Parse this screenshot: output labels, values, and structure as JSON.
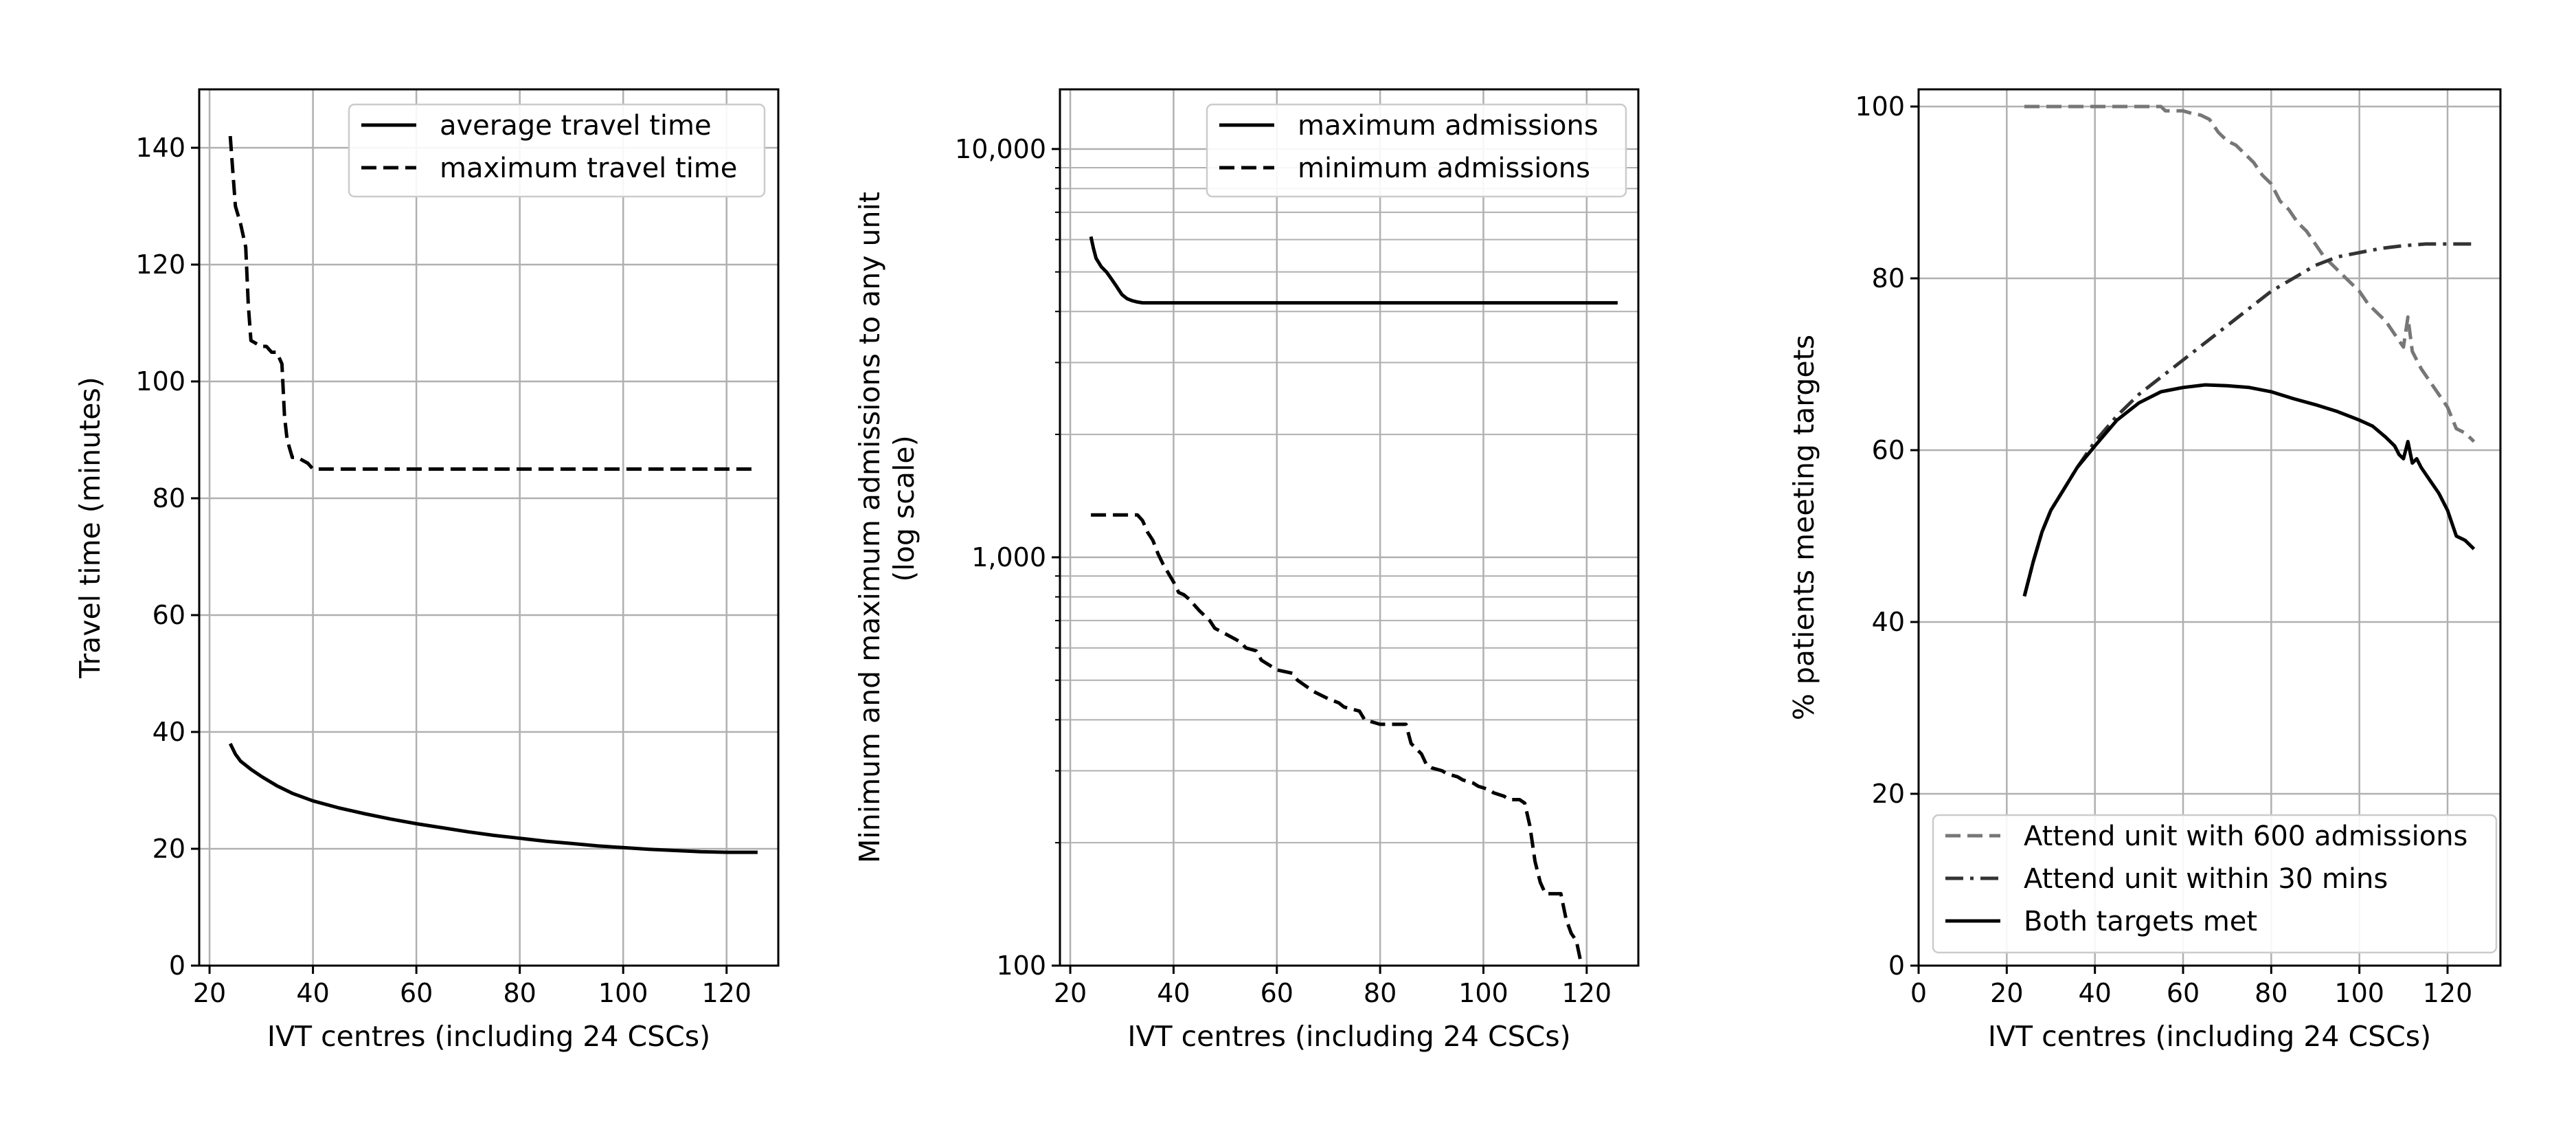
{
  "chart_data": [
    {
      "type": "line",
      "xlabel": "IVT centres (including 24 CSCs)",
      "ylabel": "Travel time (minutes)",
      "xlim": [
        18,
        130
      ],
      "ylim": [
        0,
        150
      ],
      "xticks": [
        20,
        40,
        60,
        80,
        100,
        120
      ],
      "yticks": [
        0,
        20,
        40,
        60,
        80,
        100,
        120,
        140
      ],
      "xtick_labels": [
        "20",
        "40",
        "60",
        "80",
        "100",
        "120"
      ],
      "ytick_labels": [
        "0",
        "20",
        "40",
        "60",
        "80",
        "100",
        "120",
        "140"
      ],
      "grid": true,
      "legend_position": "top-right",
      "series": [
        {
          "name": "average travel time",
          "style": "solid",
          "color": "#000000",
          "x": [
            24,
            25,
            26,
            28,
            30,
            33,
            36,
            40,
            45,
            50,
            55,
            60,
            65,
            70,
            75,
            80,
            85,
            90,
            95,
            100,
            105,
            110,
            115,
            120,
            126
          ],
          "y": [
            38,
            36.2,
            35,
            33.6,
            32.4,
            30.8,
            29.5,
            28.2,
            27,
            26,
            25.1,
            24.3,
            23.6,
            22.9,
            22.3,
            21.8,
            21.3,
            20.9,
            20.5,
            20.2,
            19.9,
            19.7,
            19.5,
            19.4,
            19.4
          ]
        },
        {
          "name": "maximum travel time",
          "style": "dashed",
          "color": "#000000",
          "x": [
            24,
            24.5,
            25,
            26,
            27,
            27.5,
            28,
            30,
            31,
            32,
            33,
            34,
            34.5,
            35,
            36,
            37,
            38,
            39,
            40,
            41,
            126
          ],
          "y": [
            142,
            136,
            130,
            127,
            123,
            113,
            107,
            106,
            106,
            105,
            105,
            103,
            94,
            90,
            87,
            87,
            86.5,
            86,
            85,
            85,
            85
          ]
        }
      ]
    },
    {
      "type": "line",
      "xlabel": "IVT centres (including 24 CSCs)",
      "ylabel_line1": "Minimum and maximum admissions to any unit",
      "ylabel_line2": "(log scale)",
      "y_scale": "log",
      "xlim": [
        18,
        130
      ],
      "ylim": [
        100,
        14000
      ],
      "xticks": [
        20,
        40,
        60,
        80,
        100,
        120
      ],
      "yticks": [
        100,
        1000,
        10000
      ],
      "xtick_labels": [
        "20",
        "40",
        "60",
        "80",
        "100",
        "120"
      ],
      "ytick_labels": [
        "100",
        "1,000",
        "10,000"
      ],
      "grid": true,
      "legend_position": "top-right",
      "series": [
        {
          "name": "maximum admissions",
          "style": "solid",
          "color": "#000000",
          "x": [
            24,
            24.5,
            25,
            26,
            27,
            28,
            29,
            30,
            31,
            32,
            33,
            34,
            35,
            40,
            126
          ],
          "y": [
            6100,
            5700,
            5400,
            5150,
            5000,
            4800,
            4600,
            4400,
            4300,
            4250,
            4220,
            4200,
            4200,
            4200,
            4200
          ]
        },
        {
          "name": "minimum admissions",
          "style": "dashed",
          "color": "#000000",
          "x": [
            24,
            30,
            33,
            34,
            35,
            36,
            37,
            38,
            40,
            41,
            42,
            43,
            45,
            46,
            47,
            48,
            50,
            53,
            54,
            56,
            57,
            60,
            63,
            64,
            66,
            67,
            70,
            72,
            73,
            76,
            77,
            80,
            85,
            86,
            88,
            89,
            90,
            92,
            93,
            95,
            96,
            98,
            99,
            101,
            102,
            104,
            105,
            107,
            108,
            109,
            110,
            111,
            112,
            113,
            114,
            115,
            116,
            117,
            118,
            119
          ],
          "y": [
            1270,
            1270,
            1270,
            1230,
            1150,
            1100,
            1020,
            960,
            870,
            820,
            810,
            790,
            740,
            720,
            700,
            670,
            650,
            620,
            600,
            590,
            560,
            530,
            520,
            500,
            480,
            470,
            450,
            440,
            430,
            420,
            400,
            390,
            390,
            350,
            330,
            310,
            305,
            300,
            295,
            290,
            285,
            280,
            275,
            270,
            265,
            260,
            255,
            255,
            250,
            220,
            180,
            160,
            150,
            150,
            150,
            150,
            130,
            120,
            115,
            100
          ]
        }
      ]
    },
    {
      "type": "line",
      "xlabel": "IVT centres (including 24 CSCs)",
      "ylabel": "% patients meeting targets",
      "xlim": [
        0,
        132
      ],
      "ylim": [
        0,
        102
      ],
      "xticks": [
        0,
        20,
        40,
        60,
        80,
        100,
        120
      ],
      "yticks": [
        0,
        20,
        40,
        60,
        80,
        100
      ],
      "xtick_labels": [
        "0",
        "20",
        "40",
        "60",
        "80",
        "100",
        "120"
      ],
      "ytick_labels": [
        "0",
        "20",
        "40",
        "60",
        "80",
        "100"
      ],
      "grid": true,
      "legend_position": "bottom-right",
      "series": [
        {
          "name": "Attend unit with 600 admissions",
          "style": "dashed",
          "color": "#777777",
          "x": [
            24,
            30,
            40,
            50,
            55,
            56,
            58,
            60,
            62,
            64,
            66,
            68,
            70,
            72,
            74,
            76,
            78,
            80,
            82,
            84,
            86,
            88,
            90,
            92,
            94,
            96,
            98,
            100,
            102,
            104,
            106,
            108,
            110,
            111,
            112,
            114,
            116,
            118,
            120,
            122,
            124,
            126
          ],
          "y": [
            100,
            100,
            100,
            100,
            100,
            99.5,
            99.5,
            99.5,
            99.2,
            99,
            98.5,
            97,
            96,
            95.5,
            94.5,
            93.5,
            92,
            91,
            89,
            88,
            86.5,
            85.5,
            84,
            82.5,
            81.5,
            80.5,
            79.5,
            78.5,
            77,
            76,
            75,
            73.5,
            72,
            75.5,
            71.5,
            69.5,
            68,
            66.5,
            65,
            62.5,
            62,
            61
          ]
        },
        {
          "name": "Attend unit within 30 mins",
          "style": "dashdot",
          "color": "#333333",
          "x": [
            24,
            26,
            28,
            30,
            33,
            36,
            40,
            45,
            50,
            55,
            60,
            65,
            70,
            75,
            80,
            85,
            90,
            95,
            100,
            105,
            110,
            115,
            120,
            126
          ],
          "y": [
            43,
            47,
            50.5,
            53,
            55.5,
            58,
            61,
            64,
            66.5,
            68.5,
            70.5,
            72.5,
            74.5,
            76.5,
            78.5,
            80,
            81.5,
            82.5,
            83,
            83.5,
            83.8,
            84,
            84,
            84
          ]
        },
        {
          "name": "Both targets met",
          "style": "solid",
          "color": "#000000",
          "x": [
            24,
            26,
            28,
            30,
            33,
            36,
            40,
            45,
            50,
            55,
            60,
            65,
            70,
            75,
            80,
            85,
            90,
            95,
            100,
            103,
            106,
            108,
            109,
            110,
            111,
            112,
            113,
            114,
            116,
            118,
            120,
            121,
            122,
            124,
            126
          ],
          "y": [
            43,
            47,
            50.5,
            53,
            55.5,
            58,
            60.5,
            63.5,
            65.5,
            66.8,
            67.3,
            67.6,
            67.5,
            67.3,
            66.8,
            66,
            65.3,
            64.5,
            63.5,
            62.8,
            61.5,
            60.5,
            59.5,
            59,
            61,
            58.5,
            59,
            58,
            56.5,
            55,
            53,
            51.5,
            50,
            49.5,
            48.5
          ]
        }
      ]
    }
  ]
}
